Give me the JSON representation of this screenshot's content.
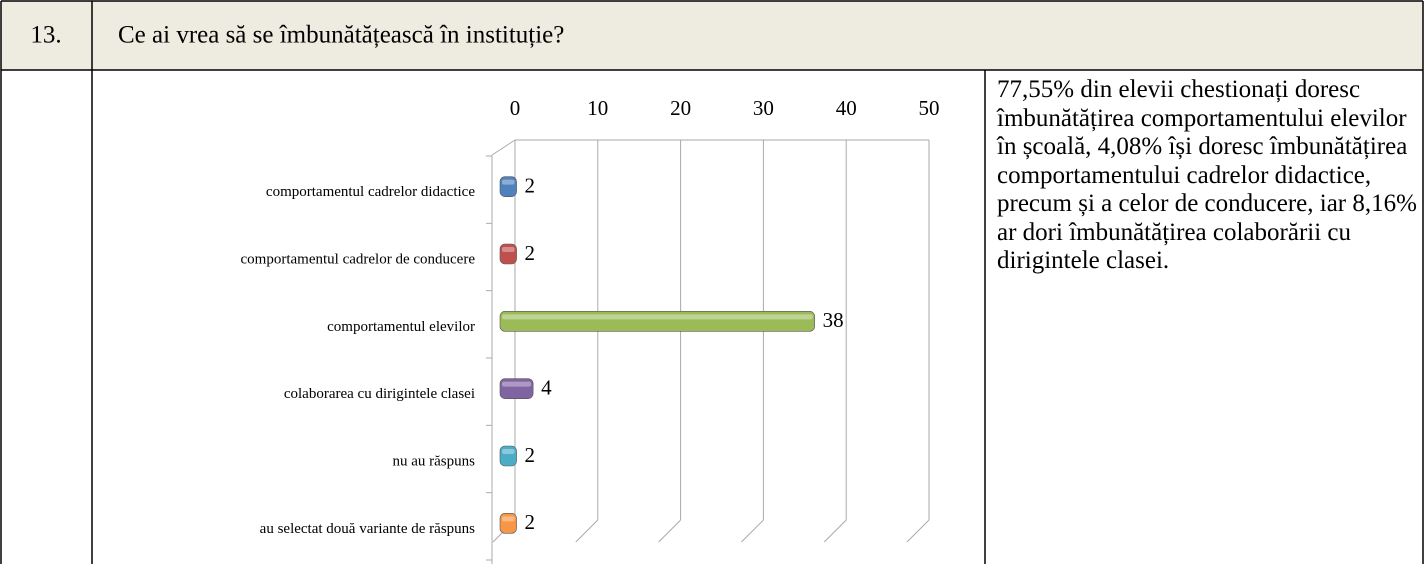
{
  "row_number": "13.",
  "question": "Ce ai vrea să se îmbunătățească în instituție?",
  "description": "77,55% din elevii chestionați doresc îmbunătățirea comportamentului elevilor în școală, 4,08%  își doresc îmbunătățirea comportamentului cadrelor didactice, precum și a celor de conducere, iar 8,16% ar dori îmbunătățirea colaborării cu dirigintele clasei.",
  "chart_data": {
    "type": "bar",
    "orientation": "horizontal",
    "categories": [
      "comportamentul cadrelor didactice",
      "comportamentul cadrelor de conducere",
      "comportamentul elevilor",
      "colaborarea cu dirigintele clasei",
      "nu au răspuns",
      "au selectat două variante de răspuns"
    ],
    "values": [
      2,
      2,
      38,
      4,
      2,
      2
    ],
    "colors": [
      "#4f81bd",
      "#c0504d",
      "#9bbb59",
      "#8064a2",
      "#4bacc6",
      "#f79646"
    ],
    "xlim": [
      0,
      50
    ],
    "xticks": [
      0,
      10,
      20,
      30,
      40,
      50
    ],
    "grid": true
  }
}
